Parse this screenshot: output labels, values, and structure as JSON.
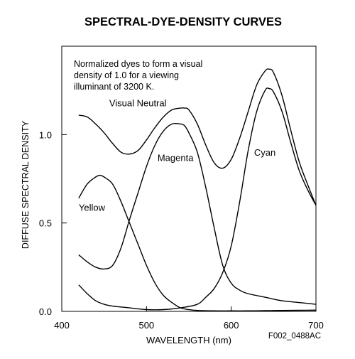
{
  "chart_data": {
    "type": "line",
    "title": "SPECTRAL-DYE-DENSITY CURVES",
    "xlabel": "WAVELENGTH (nm)",
    "ylabel": "DIFFUSE SPECTRAL DENSITY",
    "xlim": [
      400,
      700
    ],
    "ylim": [
      0.0,
      1.5
    ],
    "xticks": [
      400,
      500,
      600,
      700
    ],
    "yticks": [
      0.0,
      0.5,
      1.0
    ],
    "ytick_labels": [
      "0.0",
      "0.5",
      "1.0"
    ],
    "grid": false,
    "annotation": "Normalized dyes to form a visual density of 1.0 for a viewing illuminant of 3200 K.",
    "figure_id": "F002_0488AC",
    "series": [
      {
        "name": "Yellow",
        "x": [
          420,
          430,
          440,
          445,
          450,
          460,
          470,
          480,
          490,
          500,
          510,
          520,
          530,
          540,
          550,
          560,
          580,
          600,
          620,
          640,
          660,
          680,
          700
        ],
        "y": [
          0.64,
          0.72,
          0.76,
          0.77,
          0.76,
          0.72,
          0.62,
          0.5,
          0.38,
          0.26,
          0.16,
          0.09,
          0.05,
          0.02,
          0.01,
          0.005,
          0.003,
          0.003,
          0.003,
          0.004,
          0.005,
          0.006,
          0.007
        ]
      },
      {
        "name": "Magenta",
        "x": [
          420,
          430,
          440,
          450,
          460,
          470,
          480,
          490,
          500,
          510,
          520,
          530,
          540,
          545,
          550,
          560,
          570,
          580,
          590,
          600,
          610,
          620,
          640,
          660,
          680,
          700
        ],
        "y": [
          0.32,
          0.28,
          0.25,
          0.24,
          0.26,
          0.36,
          0.52,
          0.67,
          0.82,
          0.94,
          1.02,
          1.06,
          1.06,
          1.05,
          1.01,
          0.9,
          0.7,
          0.47,
          0.26,
          0.16,
          0.12,
          0.1,
          0.08,
          0.06,
          0.05,
          0.04
        ]
      },
      {
        "name": "Cyan",
        "x": [
          420,
          430,
          440,
          450,
          460,
          480,
          500,
          520,
          540,
          560,
          570,
          580,
          590,
          600,
          610,
          620,
          630,
          640,
          645,
          650,
          660,
          670,
          680,
          690,
          700
        ],
        "y": [
          0.15,
          0.1,
          0.06,
          0.04,
          0.03,
          0.02,
          0.01,
          0.01,
          0.02,
          0.04,
          0.08,
          0.13,
          0.22,
          0.37,
          0.62,
          0.91,
          1.13,
          1.25,
          1.26,
          1.24,
          1.13,
          0.96,
          0.8,
          0.69,
          0.6
        ]
      },
      {
        "name": "Visual Neutral",
        "x": [
          420,
          430,
          440,
          450,
          460,
          470,
          480,
          490,
          500,
          510,
          520,
          530,
          540,
          545,
          550,
          560,
          570,
          580,
          590,
          600,
          610,
          620,
          630,
          640,
          645,
          650,
          660,
          670,
          680,
          690,
          700
        ],
        "y": [
          1.11,
          1.1,
          1.06,
          1.01,
          0.95,
          0.9,
          0.89,
          0.91,
          0.97,
          1.04,
          1.1,
          1.14,
          1.15,
          1.15,
          1.14,
          1.06,
          0.94,
          0.84,
          0.81,
          0.86,
          0.98,
          1.13,
          1.28,
          1.36,
          1.37,
          1.35,
          1.22,
          1.03,
          0.85,
          0.72,
          0.6
        ]
      }
    ],
    "series_labels": [
      {
        "text": "Yellow",
        "x": 420,
        "y": 0.57
      },
      {
        "text": "Magenta",
        "x": 513,
        "y": 0.85
      },
      {
        "text": "Cyan",
        "x": 627,
        "y": 0.88
      },
      {
        "text": "Visual Neutral",
        "x": 456,
        "y": 1.16
      }
    ]
  }
}
